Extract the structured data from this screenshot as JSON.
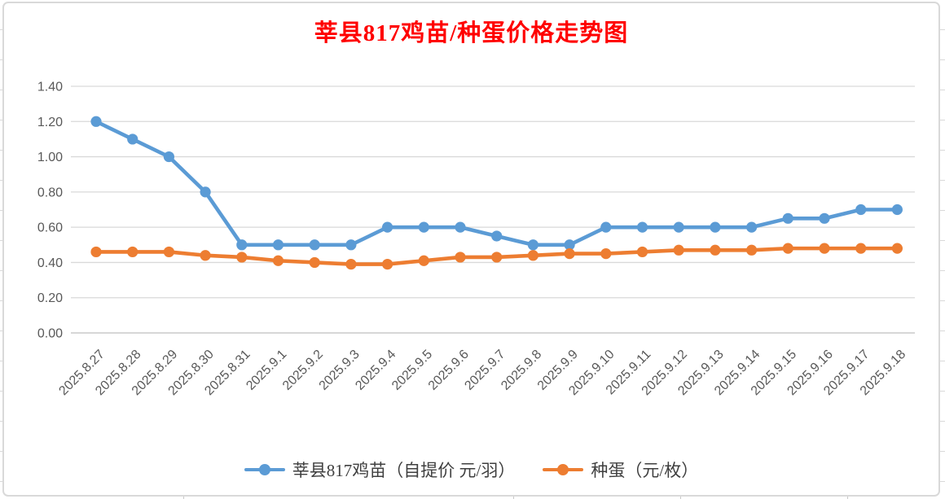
{
  "title": "莘县817鸡苗/种蛋价格走势图",
  "colors": {
    "title": "#ff0000",
    "series1": "#5b9bd5",
    "series2": "#ed7d31",
    "gridline": "#d9d9d9",
    "axis_line": "#bfbfbf",
    "tick_label": "#595959"
  },
  "chart_data": {
    "type": "line",
    "title": "莘县817鸡苗/种蛋价格走势图",
    "x": [
      "2025.8.27",
      "2025.8.28",
      "2025.8.29",
      "2025.8.30",
      "2025.8.31",
      "2025.9.1",
      "2025.9.2",
      "2025.9.3",
      "2025.9.4",
      "2025.9.5",
      "2025.9.6",
      "2025.9.7",
      "2025.9.8",
      "2025.9.9",
      "2025.9.10",
      "2025.9.11",
      "2025.9.12",
      "2025.9.13",
      "2025.9.14",
      "2025.9.15",
      "2025.9.16",
      "2025.9.17",
      "2025.9.18"
    ],
    "series": [
      {
        "name": "莘县817鸡苗（自提价 元/羽）",
        "color": "#5b9bd5",
        "values": [
          1.2,
          1.1,
          1.0,
          0.8,
          0.5,
          0.5,
          0.5,
          0.5,
          0.6,
          0.6,
          0.6,
          0.55,
          0.5,
          0.5,
          0.6,
          0.6,
          0.6,
          0.6,
          0.6,
          0.65,
          0.65,
          0.7,
          0.7
        ]
      },
      {
        "name": "种蛋（元/枚）",
        "color": "#ed7d31",
        "values": [
          0.46,
          0.46,
          0.46,
          0.44,
          0.43,
          0.41,
          0.4,
          0.39,
          0.39,
          0.41,
          0.43,
          0.43,
          0.44,
          0.45,
          0.45,
          0.46,
          0.47,
          0.47,
          0.47,
          0.48,
          0.48,
          0.48,
          0.48
        ]
      }
    ],
    "ylim": [
      0,
      1.4
    ],
    "ytick_step": 0.2,
    "ytick_labels": [
      "0.00",
      "0.20",
      "0.40",
      "0.60",
      "0.80",
      "1.00",
      "1.20",
      "1.40"
    ],
    "xlabel": "",
    "ylabel": "",
    "grid": true,
    "x_tick_rotation": 45,
    "legend_position": "bottom"
  }
}
